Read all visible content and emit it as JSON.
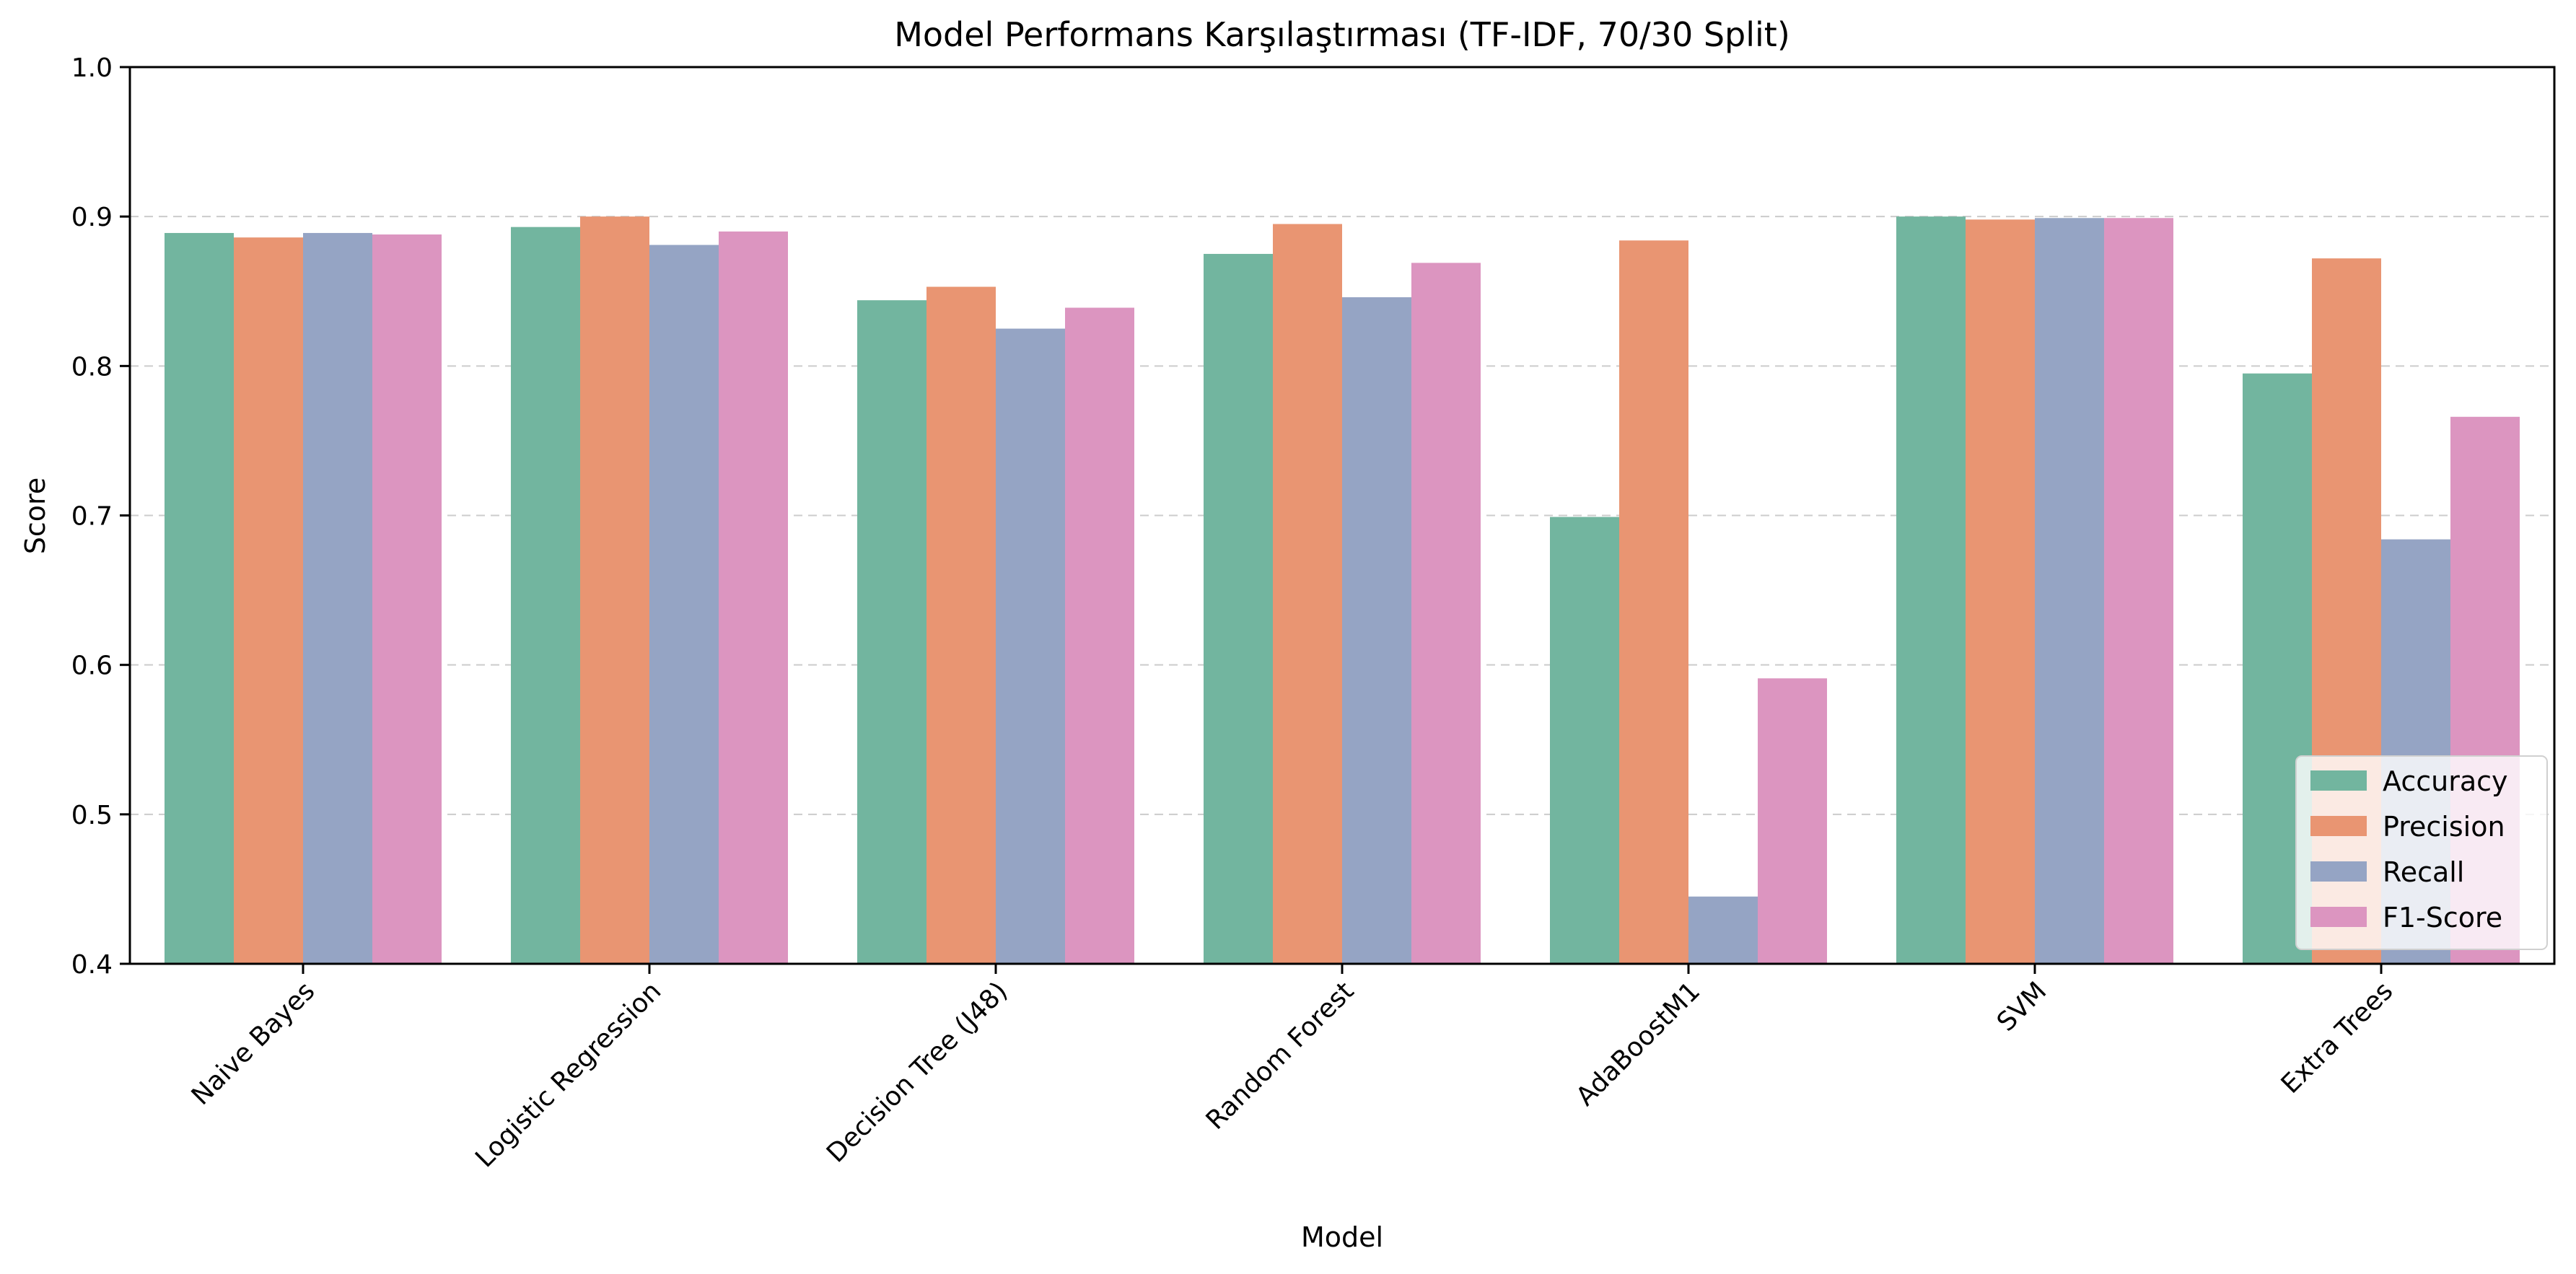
{
  "chart_data": {
    "type": "bar",
    "title": "Model Performans Karşılaştırması (TF-IDF, 70/30 Split)",
    "xlabel": "Model",
    "ylabel": "Score",
    "ylim": [
      0.4,
      1.0
    ],
    "yticks": [
      "0.4",
      "0.5",
      "0.6",
      "0.7",
      "0.8",
      "0.9",
      "1.0"
    ],
    "grid": "y-dashed",
    "legend_position": "lower-right",
    "categories": [
      "Naive Bayes",
      "Logistic Regression",
      "Decision Tree (J48)",
      "Random Forest",
      "AdaBoostM1",
      "SVM",
      "Extra Trees"
    ],
    "series": [
      {
        "name": "Accuracy",
        "color": "#72b59f",
        "values": [
          0.889,
          0.893,
          0.844,
          0.875,
          0.699,
          0.9,
          0.795
        ]
      },
      {
        "name": "Precision",
        "color": "#e99572",
        "values": [
          0.886,
          0.9,
          0.853,
          0.895,
          0.884,
          0.898,
          0.872
        ]
      },
      {
        "name": "Recall",
        "color": "#95a4c4",
        "values": [
          0.889,
          0.881,
          0.825,
          0.846,
          0.445,
          0.899,
          0.684
        ]
      },
      {
        "name": "F1-Score",
        "color": "#dc95c0",
        "values": [
          0.888,
          0.89,
          0.839,
          0.869,
          0.591,
          0.899,
          0.766
        ]
      }
    ]
  }
}
